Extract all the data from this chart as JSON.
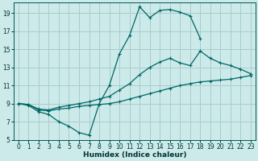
{
  "xlabel": "Humidex (Indice chaleur)",
  "background_color": "#cceaea",
  "grid_color": "#aacccc",
  "line_color": "#006666",
  "xlim": [
    -0.5,
    23.5
  ],
  "ylim": [
    5,
    20.2
  ],
  "yticks": [
    5,
    7,
    9,
    11,
    13,
    15,
    17,
    19
  ],
  "xticks": [
    0,
    1,
    2,
    3,
    4,
    5,
    6,
    7,
    8,
    9,
    10,
    11,
    12,
    13,
    14,
    15,
    16,
    17,
    18,
    19,
    20,
    21,
    22,
    23
  ],
  "line1_x": [
    0,
    1,
    2,
    3,
    4,
    5,
    6,
    7,
    8,
    9,
    10,
    11,
    12,
    13,
    14,
    15,
    16,
    17,
    18
  ],
  "line1_y": [
    9.0,
    8.8,
    8.1,
    7.8,
    7.0,
    6.5,
    5.8,
    5.5,
    9.0,
    11.0,
    14.5,
    16.5,
    19.7,
    18.5,
    19.3,
    19.4,
    19.1,
    18.7,
    16.2
  ],
  "line2_x": [
    0,
    1,
    2,
    3,
    4,
    5,
    6,
    7,
    8,
    9,
    10,
    11,
    12,
    13,
    14,
    15,
    16,
    17,
    18,
    19,
    20,
    21,
    22,
    23
  ],
  "line2_y": [
    9.0,
    8.9,
    8.3,
    8.2,
    8.4,
    8.5,
    8.7,
    8.8,
    8.9,
    9.0,
    9.2,
    9.5,
    9.8,
    10.1,
    10.4,
    10.7,
    11.0,
    11.2,
    11.4,
    11.5,
    11.6,
    11.7,
    11.9,
    12.1
  ],
  "line3_x": [
    0,
    1,
    2,
    3,
    4,
    5,
    6,
    7,
    8,
    9,
    10,
    11,
    12,
    13,
    14,
    15,
    16,
    17,
    18,
    19,
    20,
    21,
    22,
    23
  ],
  "line3_y": [
    9.0,
    8.9,
    8.4,
    8.3,
    8.6,
    8.8,
    9.0,
    9.2,
    9.5,
    9.8,
    10.5,
    11.2,
    12.2,
    13.0,
    13.6,
    14.0,
    13.5,
    13.2,
    14.8,
    14.0,
    13.5,
    13.2,
    12.8,
    12.3
  ]
}
